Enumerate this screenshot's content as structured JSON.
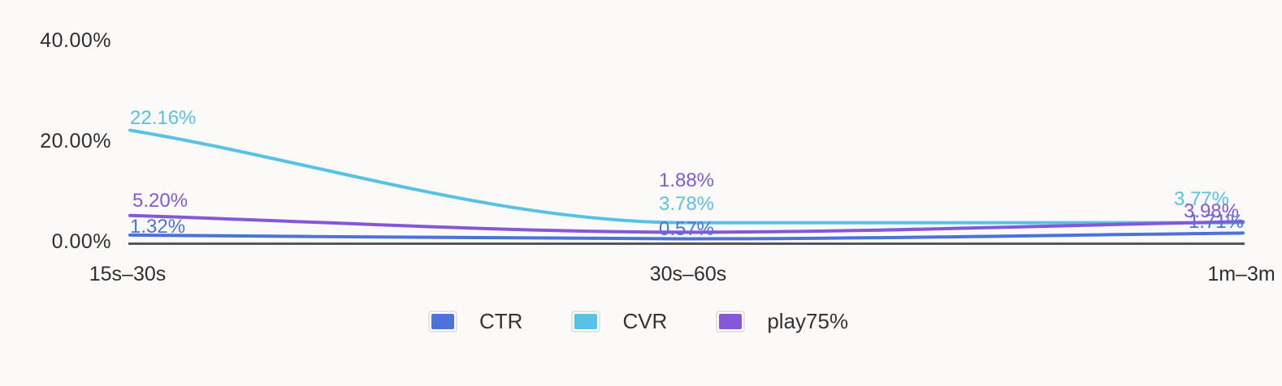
{
  "chart_data": {
    "type": "line",
    "title": "",
    "categories": [
      "15s–30s",
      "30s–60s",
      "1m–3m"
    ],
    "series": [
      {
        "name": "CTR",
        "color": "#4B73DB",
        "values": [
          1.32,
          0.57,
          1.71
        ],
        "labels": [
          "1.32%",
          "0.57%",
          "1.71%"
        ]
      },
      {
        "name": "CVR",
        "color": "#57C1E6",
        "values": [
          22.16,
          3.78,
          3.77
        ],
        "labels": [
          "22.16%",
          "3.78%",
          "3.77%"
        ]
      },
      {
        "name": "play75%",
        "color": "#8458D8",
        "values": [
          5.2,
          1.88,
          3.98
        ],
        "labels": [
          "5.20%",
          "1.88%",
          "3.98%"
        ]
      }
    ],
    "y_ticks": [
      {
        "value": 40,
        "label": "40.00%"
      },
      {
        "value": 20,
        "label": "20.00%"
      },
      {
        "value": 0,
        "label": "0.00%"
      }
    ],
    "ylim": [
      0,
      40
    ],
    "grid": false,
    "data_labels": true,
    "smooth": true,
    "legend_position": "bottom",
    "axis_color": "#54555B",
    "text_color": "#2E2E30",
    "background": "#FBFAF8"
  }
}
